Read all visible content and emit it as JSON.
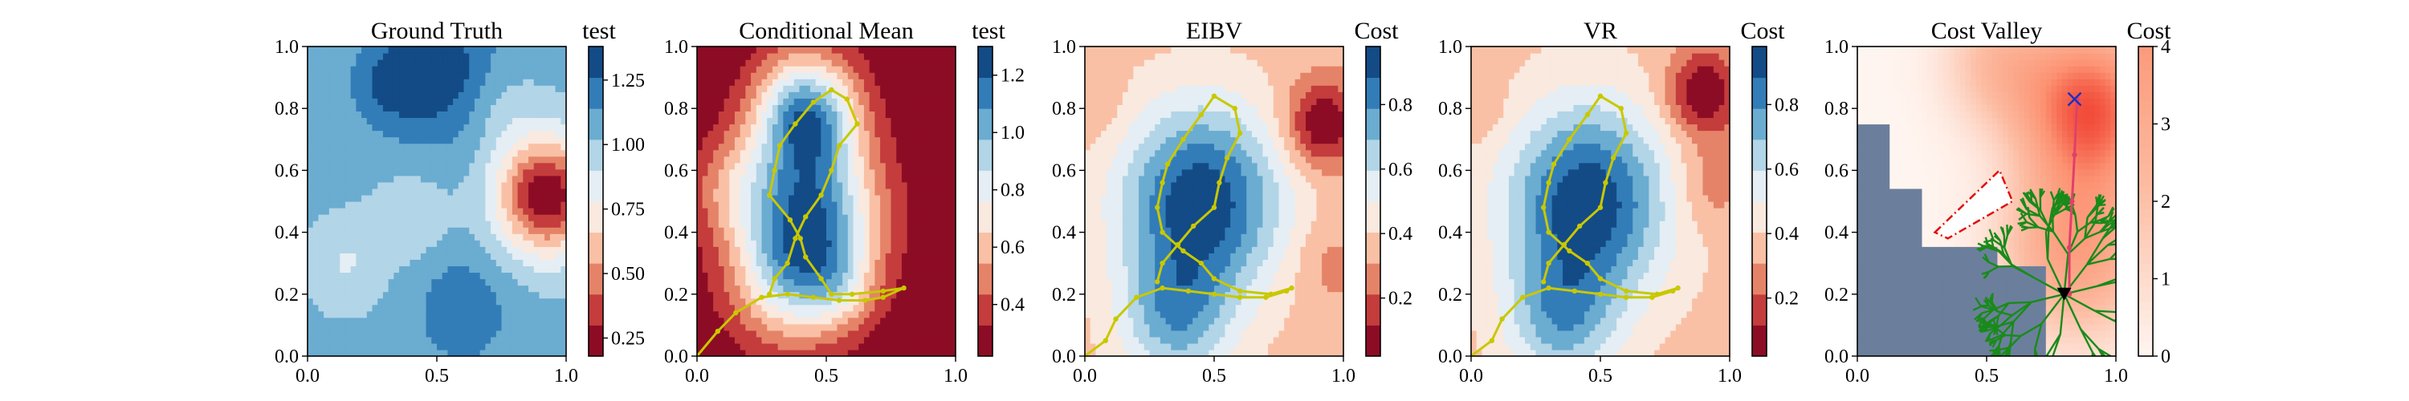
{
  "figure": {
    "panels": [
      {
        "id": "ground-truth",
        "title": "Ground Truth",
        "colorbar_label": "test"
      },
      {
        "id": "conditional-mean",
        "title": "Conditional Mean",
        "colorbar_label": "test"
      },
      {
        "id": "eibv",
        "title": "EIBV",
        "colorbar_label": "Cost"
      },
      {
        "id": "vr",
        "title": "VR",
        "colorbar_label": "Cost"
      },
      {
        "id": "cost-valley",
        "title": "Cost Valley",
        "colorbar_label": "Cost"
      }
    ]
  },
  "chart_data": [
    {
      "type": "heatmap",
      "title": "Ground Truth",
      "xlim": [
        0,
        1
      ],
      "ylim": [
        0,
        1
      ],
      "xticks": [
        "0.0",
        "0.5",
        "1.0"
      ],
      "yticks": [
        "0.0",
        "0.2",
        "0.4",
        "0.6",
        "0.8",
        "1.0"
      ],
      "colormap": "RdBu",
      "colorbar": {
        "label": "test",
        "range": [
          0.18,
          1.38
        ],
        "ticks": [
          "0.25",
          "0.50",
          "0.75",
          "1.00",
          "1.25"
        ],
        "tick_values": [
          0.25,
          0.5,
          0.75,
          1.0,
          1.25
        ]
      },
      "field": {
        "base": 1.05,
        "blobs": [
          [
            0.92,
            0.52,
            0.13,
            -0.85
          ],
          [
            0.5,
            0.92,
            0.16,
            0.3
          ],
          [
            0.3,
            0.88,
            0.09,
            0.15
          ],
          [
            0.6,
            0.15,
            0.12,
            0.2
          ],
          [
            0.15,
            0.3,
            0.1,
            -0.15
          ],
          [
            0.4,
            0.45,
            0.1,
            -0.12
          ],
          [
            0.75,
            0.8,
            0.1,
            -0.1
          ]
        ]
      }
    },
    {
      "type": "heatmap",
      "title": "Conditional Mean",
      "xlim": [
        0,
        1
      ],
      "ylim": [
        0,
        1
      ],
      "xticks": [
        "0.0",
        "0.5",
        "1.0"
      ],
      "yticks": [
        "0.0",
        "0.2",
        "0.4",
        "0.6",
        "0.8",
        "1.0"
      ],
      "colormap": "RdBu",
      "colorbar": {
        "label": "test",
        "range": [
          0.22,
          1.3
        ],
        "ticks": [
          "0.4",
          "0.6",
          "0.8",
          "1.0",
          "1.2"
        ],
        "tick_values": [
          0.4,
          0.6,
          0.8,
          1.0,
          1.2
        ]
      },
      "field": {
        "base": 0.15,
        "blobs": [
          [
            0.42,
            0.78,
            0.14,
            0.95
          ],
          [
            0.45,
            0.45,
            0.18,
            0.9
          ],
          [
            0.55,
            0.22,
            0.1,
            0.25
          ],
          [
            0.35,
            0.25,
            0.16,
            0.5
          ],
          [
            0.15,
            0.55,
            0.12,
            0.3
          ]
        ]
      },
      "path": {
        "color": "#c8c800",
        "x": [
          0.0,
          0.08,
          0.15,
          0.25,
          0.35,
          0.45,
          0.55,
          0.65,
          0.72,
          0.8,
          0.72,
          0.6,
          0.52,
          0.48,
          0.42,
          0.4,
          0.36,
          0.28,
          0.3,
          0.32,
          0.38,
          0.45,
          0.52,
          0.58,
          0.62,
          0.55,
          0.52,
          0.48,
          0.42,
          0.38,
          0.35,
          0.3,
          0.28
        ],
        "y": [
          0.0,
          0.08,
          0.14,
          0.19,
          0.2,
          0.19,
          0.18,
          0.18,
          0.19,
          0.22,
          0.21,
          0.2,
          0.2,
          0.25,
          0.32,
          0.38,
          0.44,
          0.52,
          0.6,
          0.68,
          0.75,
          0.82,
          0.86,
          0.83,
          0.75,
          0.68,
          0.6,
          0.52,
          0.45,
          0.38,
          0.3,
          0.25,
          0.2
        ]
      }
    },
    {
      "type": "heatmap",
      "title": "EIBV",
      "xlim": [
        0,
        1
      ],
      "ylim": [
        0,
        1
      ],
      "xticks": [
        "0.0",
        "0.5",
        "1.0"
      ],
      "yticks": [
        "0.0",
        "0.2",
        "0.4",
        "0.6",
        "0.8",
        "1.0"
      ],
      "colormap": "RdBu",
      "colorbar": {
        "label": "Cost",
        "range": [
          0.02,
          0.98
        ],
        "ticks": [
          "0.2",
          "0.4",
          "0.6",
          "0.8"
        ],
        "tick_values": [
          0.2,
          0.4,
          0.6,
          0.8
        ]
      },
      "field": {
        "base": 0.35,
        "blobs": [
          [
            0.45,
            0.5,
            0.22,
            0.9
          ],
          [
            0.35,
            0.12,
            0.15,
            0.5
          ],
          [
            0.92,
            0.75,
            0.1,
            -0.55
          ],
          [
            0.95,
            0.3,
            0.1,
            -0.15
          ],
          [
            0.05,
            0.8,
            0.08,
            -0.1
          ]
        ]
      },
      "path": {
        "color": "#c8c800",
        "x": [
          0.0,
          0.08,
          0.12,
          0.2,
          0.3,
          0.4,
          0.5,
          0.6,
          0.7,
          0.78,
          0.8,
          0.72,
          0.6,
          0.5,
          0.45,
          0.38,
          0.3,
          0.28,
          0.3,
          0.32,
          0.38,
          0.45,
          0.5,
          0.58,
          0.6,
          0.55,
          0.52,
          0.5,
          0.42,
          0.36,
          0.3,
          0.28
        ],
        "y": [
          0.0,
          0.05,
          0.12,
          0.19,
          0.22,
          0.21,
          0.2,
          0.19,
          0.19,
          0.21,
          0.22,
          0.2,
          0.21,
          0.25,
          0.3,
          0.34,
          0.4,
          0.48,
          0.56,
          0.62,
          0.7,
          0.78,
          0.84,
          0.8,
          0.72,
          0.64,
          0.56,
          0.48,
          0.42,
          0.36,
          0.3,
          0.24
        ]
      }
    },
    {
      "type": "heatmap",
      "title": "VR",
      "xlim": [
        0,
        1
      ],
      "ylim": [
        0,
        1
      ],
      "xticks": [
        "0.0",
        "0.5",
        "1.0"
      ],
      "yticks": [
        "0.0",
        "0.2",
        "0.4",
        "0.6",
        "0.8",
        "1.0"
      ],
      "colormap": "RdBu",
      "colorbar": {
        "label": "Cost",
        "range": [
          0.02,
          0.98
        ],
        "ticks": [
          "0.2",
          "0.4",
          "0.6",
          "0.8"
        ],
        "tick_values": [
          0.2,
          0.4,
          0.6,
          0.8
        ]
      },
      "field": {
        "base": 0.35,
        "blobs": [
          [
            0.45,
            0.5,
            0.22,
            0.9
          ],
          [
            0.35,
            0.12,
            0.15,
            0.5
          ],
          [
            0.9,
            0.85,
            0.1,
            -0.55
          ],
          [
            0.92,
            0.55,
            0.1,
            -0.2
          ],
          [
            0.05,
            0.8,
            0.08,
            -0.1
          ]
        ]
      },
      "path": {
        "color": "#c8c800",
        "x": [
          0.0,
          0.08,
          0.12,
          0.2,
          0.3,
          0.4,
          0.5,
          0.6,
          0.7,
          0.78,
          0.8,
          0.72,
          0.6,
          0.5,
          0.45,
          0.38,
          0.3,
          0.28,
          0.3,
          0.32,
          0.38,
          0.45,
          0.5,
          0.58,
          0.6,
          0.55,
          0.52,
          0.5,
          0.42,
          0.36,
          0.3,
          0.28
        ],
        "y": [
          0.0,
          0.05,
          0.12,
          0.19,
          0.22,
          0.21,
          0.2,
          0.19,
          0.19,
          0.21,
          0.22,
          0.2,
          0.21,
          0.25,
          0.3,
          0.34,
          0.4,
          0.48,
          0.56,
          0.62,
          0.7,
          0.78,
          0.84,
          0.8,
          0.72,
          0.64,
          0.56,
          0.48,
          0.42,
          0.36,
          0.3,
          0.24
        ]
      }
    },
    {
      "type": "heatmap",
      "title": "Cost Valley",
      "xlim": [
        0,
        1
      ],
      "ylim": [
        0,
        1
      ],
      "xticks": [
        "0.0",
        "0.5",
        "1.0"
      ],
      "yticks": [
        "0.0",
        "0.2",
        "0.4",
        "0.6",
        "0.8",
        "1.0"
      ],
      "colormap": "Reds",
      "colorbar": {
        "label": "Cost",
        "range": [
          0,
          4
        ],
        "ticks": [
          "0",
          "1",
          "2",
          "3",
          "4"
        ],
        "tick_values": [
          0,
          1,
          2,
          3,
          4
        ]
      },
      "field": {
        "base": 0.4,
        "blobs": [
          [
            0.9,
            0.8,
            0.18,
            1.6
          ],
          [
            0.85,
            0.35,
            0.2,
            1.0
          ],
          [
            0.55,
            0.95,
            0.15,
            0.6
          ]
        ]
      },
      "masked_region_color": "#6b7f9c",
      "obstacle_polygon": {
        "color": "#e01010",
        "x": [
          0.3,
          0.55,
          0.6,
          0.35
        ],
        "y": [
          0.4,
          0.6,
          0.5,
          0.38
        ]
      },
      "tree_color": "#1a8a1a",
      "path": {
        "color": "#e0406a",
        "x": [
          0.82,
          0.82,
          0.83,
          0.84,
          0.85
        ],
        "y": [
          0.2,
          0.35,
          0.5,
          0.65,
          0.83
        ]
      },
      "start_marker": {
        "x": 0.8,
        "y": 0.2,
        "symbol": "triangle-down",
        "color": "#000000"
      },
      "goal_marker": {
        "x": 0.84,
        "y": 0.83,
        "symbol": "x",
        "color": "#1f2fbf"
      }
    }
  ]
}
